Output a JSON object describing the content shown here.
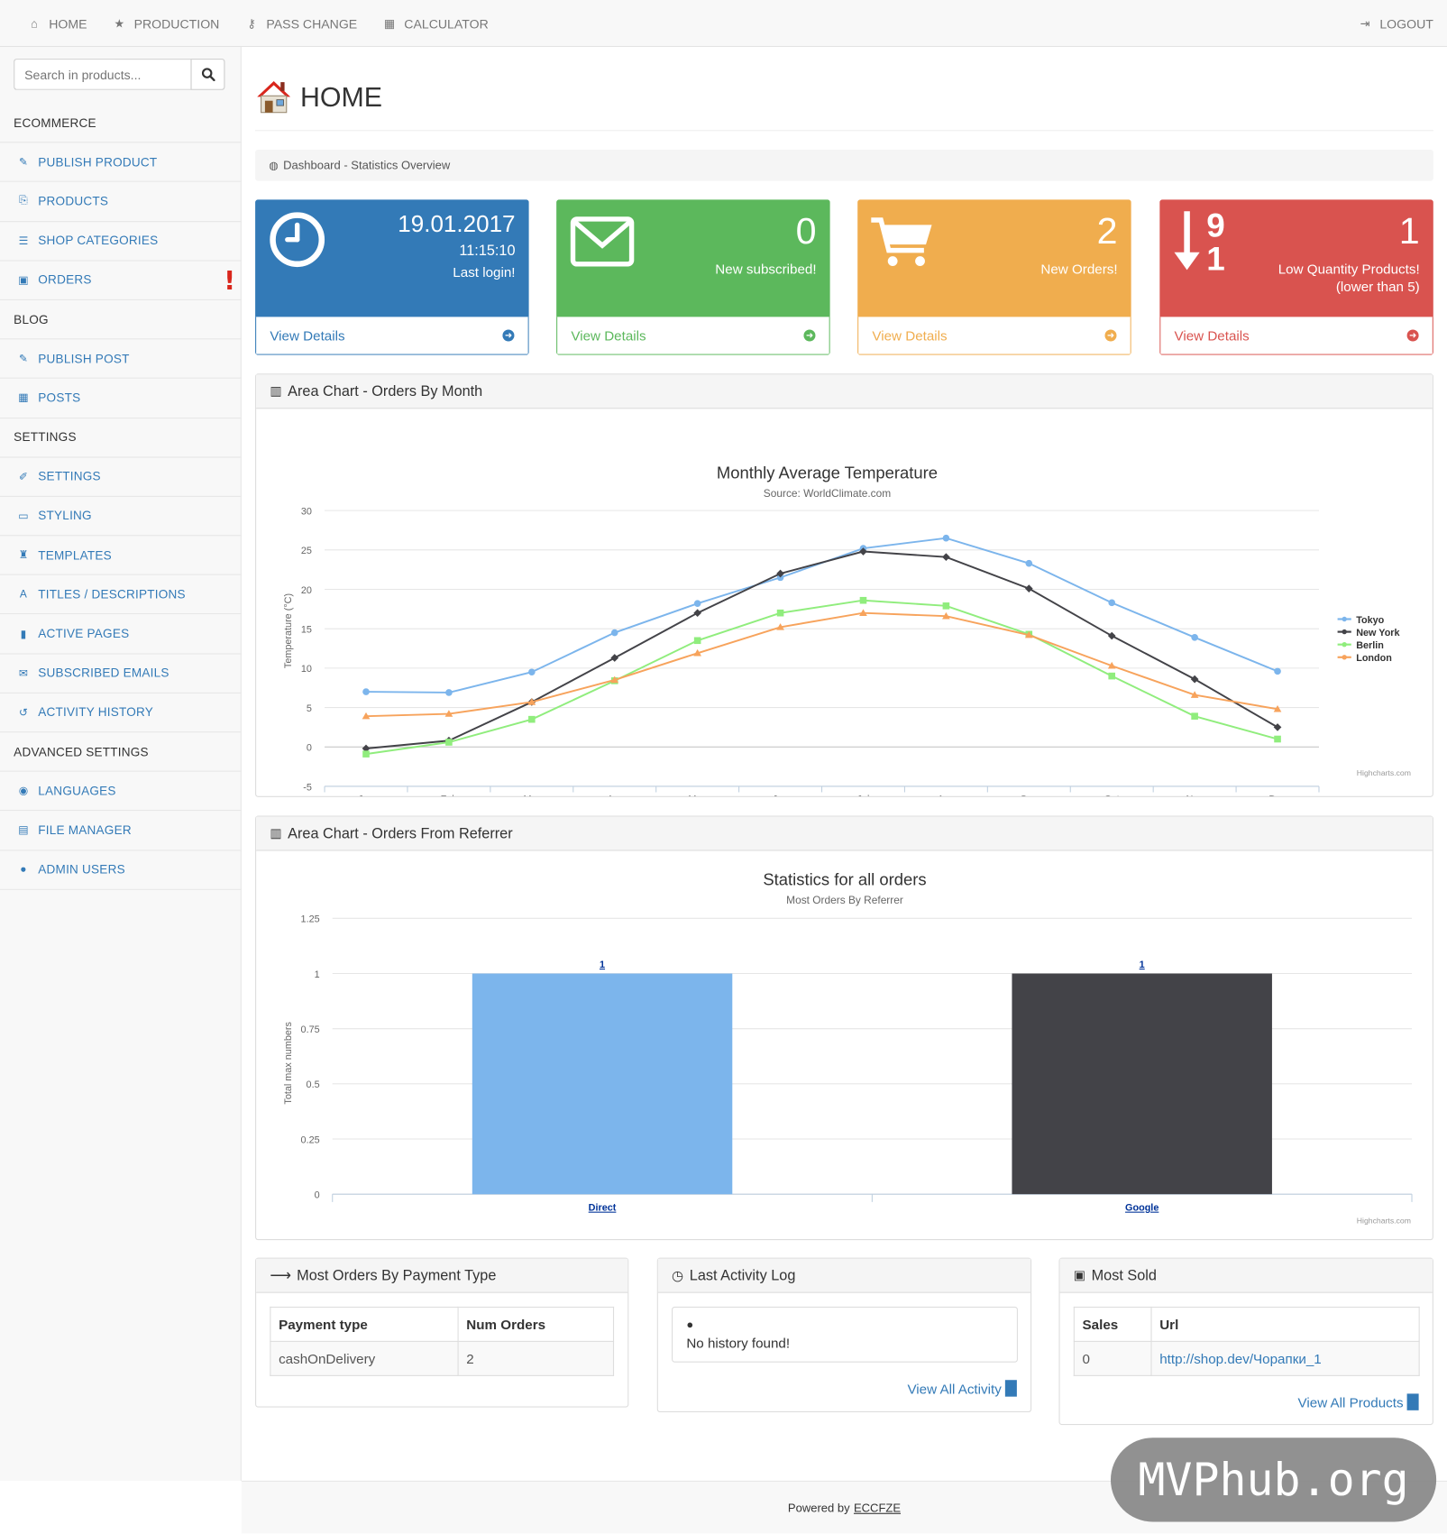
{
  "topnav": {
    "home": "HOME",
    "production": "PRODUCTION",
    "pass_change": "PASS CHANGE",
    "calculator": "CALCULATOR",
    "logout": "LOGOUT"
  },
  "search": {
    "placeholder": "Search in products..."
  },
  "sidebar": {
    "items": [
      {
        "type": "section",
        "label": "ECOMMERCE"
      },
      {
        "type": "link",
        "label": "PUBLISH PRODUCT",
        "icon": "edit-icon",
        "glyph": "✎"
      },
      {
        "type": "link",
        "label": "PRODUCTS",
        "icon": "copy-icon",
        "glyph": "⎘"
      },
      {
        "type": "link",
        "label": "SHOP CATEGORIES",
        "icon": "list-icon",
        "glyph": "☰"
      },
      {
        "type": "link",
        "label": "ORDERS",
        "icon": "money-icon",
        "glyph": "▣",
        "alert": "!"
      },
      {
        "type": "section",
        "label": "BLOG"
      },
      {
        "type": "link",
        "label": "PUBLISH POST",
        "icon": "edit-icon",
        "glyph": "✎"
      },
      {
        "type": "link",
        "label": "POSTS",
        "icon": "grid-icon",
        "glyph": "▦"
      },
      {
        "type": "section",
        "label": "SETTINGS"
      },
      {
        "type": "link",
        "label": "SETTINGS",
        "icon": "wrench-icon",
        "glyph": "✐"
      },
      {
        "type": "link",
        "label": "STYLING",
        "icon": "laptop-icon",
        "glyph": "▭"
      },
      {
        "type": "link",
        "label": "TEMPLATES",
        "icon": "binoculars-icon",
        "glyph": "♜"
      },
      {
        "type": "link",
        "label": "TITLES / DESCRIPTIONS",
        "icon": "font-icon",
        "glyph": "A"
      },
      {
        "type": "link",
        "label": "ACTIVE PAGES",
        "icon": "file-icon",
        "glyph": "▮"
      },
      {
        "type": "link",
        "label": "SUBSCRIBED EMAILS",
        "icon": "envelope-icon",
        "glyph": "✉"
      },
      {
        "type": "link",
        "label": "ACTIVITY HISTORY",
        "icon": "history-icon",
        "glyph": "↺"
      },
      {
        "type": "section",
        "label": "ADVANCED SETTINGS"
      },
      {
        "type": "link",
        "label": "LANGUAGES",
        "icon": "globe-icon",
        "glyph": "◉"
      },
      {
        "type": "link",
        "label": "FILE MANAGER",
        "icon": "file-text-icon",
        "glyph": "▤"
      },
      {
        "type": "link",
        "label": "ADMIN USERS",
        "icon": "user-icon",
        "glyph": "●"
      }
    ]
  },
  "page": {
    "title": "HOME",
    "breadcrumb": "Dashboard - Statistics Overview"
  },
  "tiles": [
    {
      "big": "19.01.2017",
      "line1": "11:15:10",
      "line2": "Last login!",
      "footer": "View Details",
      "color": "#337ab7",
      "icon": "clock-icon"
    },
    {
      "big": "0",
      "line1": "New subscribed!",
      "line2": "",
      "footer": "View Details",
      "color": "#5cb85c",
      "icon": "envelope-icon"
    },
    {
      "big": "2",
      "line1": "New Orders!",
      "line2": "",
      "footer": "View Details",
      "color": "#f0ad4e",
      "icon": "cart-icon"
    },
    {
      "big": "1",
      "line1": "Low Quantity Products!",
      "line2": "(lower than 5)",
      "footer": "View Details",
      "color": "#d9534f",
      "icon": "sort-numeric-icon",
      "icon_digits": [
        "9",
        "1"
      ]
    }
  ],
  "panels": {
    "orders_by_month": "Area Chart - Orders By Month",
    "orders_from_referrer": "Area Chart - Orders From Referrer",
    "payment_type": "Most Orders By Payment Type",
    "activity_log": "Last Activity Log",
    "most_sold": "Most Sold"
  },
  "credits": "Highcharts.com",
  "chart_data": [
    {
      "type": "line",
      "title": "Monthly Average Temperature",
      "subtitle": "Source: WorldClimate.com",
      "xlabel": "",
      "ylabel": "Temperature (°C)",
      "categories": [
        "Jan",
        "Feb",
        "Mar",
        "Apr",
        "May",
        "Jun",
        "Jul",
        "Aug",
        "Sep",
        "Oct",
        "Nov",
        "Dec"
      ],
      "ylim": [
        -5,
        30
      ],
      "yticks": [
        30,
        25,
        20,
        15,
        10,
        5,
        0,
        -5
      ],
      "grid": true,
      "legend": "right",
      "series": [
        {
          "name": "Tokyo",
          "color": "#7cb5ec",
          "marker": "circle",
          "values": [
            7.0,
            6.9,
            9.5,
            14.5,
            18.2,
            21.5,
            25.2,
            26.5,
            23.3,
            18.3,
            13.9,
            9.6
          ]
        },
        {
          "name": "New York",
          "color": "#434348",
          "marker": "diamond",
          "values": [
            -0.2,
            0.8,
            5.7,
            11.3,
            17.0,
            22.0,
            24.8,
            24.1,
            20.1,
            14.1,
            8.6,
            2.5
          ]
        },
        {
          "name": "Berlin",
          "color": "#90ed7d",
          "marker": "square",
          "values": [
            -0.9,
            0.6,
            3.5,
            8.4,
            13.5,
            17.0,
            18.6,
            17.9,
            14.3,
            9.0,
            3.9,
            1.0
          ]
        },
        {
          "name": "London",
          "color": "#f7a35c",
          "marker": "triangle",
          "values": [
            3.9,
            4.2,
            5.7,
            8.5,
            11.9,
            15.2,
            17.0,
            16.6,
            14.2,
            10.3,
            6.6,
            4.8
          ]
        }
      ]
    },
    {
      "type": "bar",
      "title": "Statistics for all orders",
      "subtitle": "Most Orders By Referrer",
      "xlabel": "",
      "ylabel": "Total max numbers",
      "categories": [
        "Direct",
        "Google"
      ],
      "values": [
        1,
        1
      ],
      "data_labels": [
        "1",
        "1"
      ],
      "colors": [
        "#7cb5ec",
        "#434348"
      ],
      "ylim": [
        0,
        1.25
      ],
      "yticks": [
        "1.25",
        "1",
        "0.75",
        "0.5",
        "0.25",
        "0"
      ],
      "grid": true
    }
  ],
  "payment_table": {
    "headers": [
      "Payment type",
      "Num Orders"
    ],
    "rows": [
      [
        "cashOnDelivery",
        "2"
      ]
    ]
  },
  "activity": {
    "empty": "No history found!",
    "link": "View All Activity"
  },
  "most_sold_table": {
    "headers": [
      "Sales",
      "Url"
    ],
    "rows": [
      [
        "0",
        "http://shop.dev/Чорапки_1"
      ]
    ],
    "link": "View All Products"
  },
  "footer": {
    "prefix": "Powered by",
    "link": "ECCFZE"
  },
  "watermark": "MVPhub.org"
}
